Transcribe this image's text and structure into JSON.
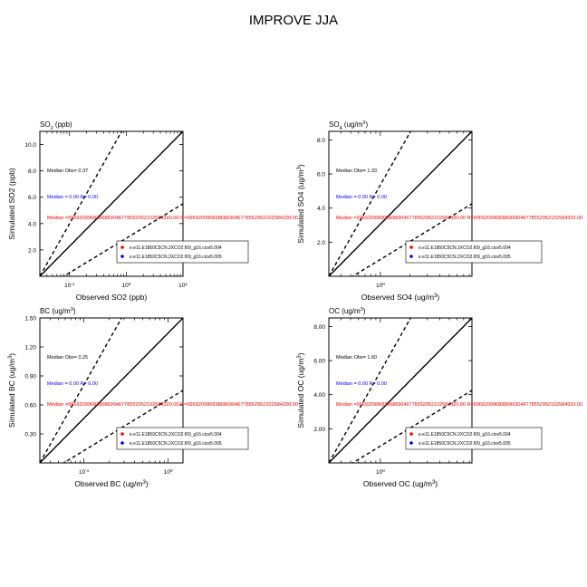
{
  "figure": {
    "title": "IMPROVE JJA"
  },
  "chart_data": [
    {
      "type": "scatter",
      "panel_title": "SO",
      "panel_title_sub": "2",
      "panel_title_suffix": " (ppb)",
      "xlabel": "Observed SO2 (ppb)",
      "ylabel": "Simulated SO2 (ppb)",
      "x_scale": "log",
      "xlim": [
        0.03,
        10
      ],
      "ylim": [
        0,
        11
      ],
      "x_ticks": [
        0.1,
        1,
        10
      ],
      "x_tick_labels": [
        "10",
        "10",
        "10"
      ],
      "x_tick_exps": [
        "-1",
        "0",
        "1"
      ],
      "y_ticks": [
        2,
        4,
        6,
        8,
        10
      ],
      "y_tick_labels": [
        "2.0",
        "4.0",
        "6.0",
        "8.0",
        "10.0"
      ],
      "median_obs": "Median Obs= 0.37",
      "median_blue": "Median = 0.00 R= 0.00",
      "median_red": "Median =99692099683868690467785529521025843​20.00 R=9969209968386869046778552952102584320.00",
      "legend": [
        {
          "label": "e.e11.E1850C5CN.2XCO2.f09_g16.cice5.004",
          "color": "#ff0000"
        },
        {
          "label": "e.e11.E1850C5CN.2XCO2.f09_g16.cice5.005",
          "color": "#0000ff"
        }
      ],
      "legend_position": "bottom-right",
      "grid": false
    },
    {
      "type": "scatter",
      "panel_title": "SO",
      "panel_title_sub": "4",
      "panel_title_suffix": " (ug/m",
      "panel_title_sup": "3",
      "panel_title_end": ")",
      "xlabel": "Observed SO4 (ug/m",
      "xlabel_sup": "3",
      "xlabel_end": ")",
      "ylabel": "Simulated SO4 (ug/m",
      "ylabel_sup": "3",
      "ylabel_end": ")",
      "x_scale": "log",
      "xlim": [
        0.3,
        8.5
      ],
      "ylim": [
        0,
        8.5
      ],
      "x_ticks": [
        1
      ],
      "x_tick_labels": [
        "10"
      ],
      "x_tick_exps": [
        "0"
      ],
      "y_ticks": [
        2,
        4,
        6,
        8
      ],
      "y_tick_labels": [
        "2.0",
        "4.0",
        "6.0",
        "8.0"
      ],
      "median_obs": "Median Obs= 1.33",
      "median_blue": "Median = 0.00 R= 0.00",
      "median_red": "Median =9969209968386869046778552952102584320.00 R=9969209968386869046778552952102584320.00",
      "legend": [
        {
          "label": "e.e11.E1850C5CN.2XCO2.f09_g16.cice5.004",
          "color": "#ff0000"
        },
        {
          "label": "e.e11.E1850C5CN.2XCO2.f09_g16.cice5.005",
          "color": "#0000ff"
        }
      ],
      "legend_position": "bottom-right",
      "grid": false
    },
    {
      "type": "scatter",
      "panel_title": "BC (ug/m",
      "panel_title_sup": "3",
      "panel_title_end": ")",
      "xlabel": "Observed BC (ug/m",
      "xlabel_sup": "3",
      "xlabel_end": ")",
      "ylabel": "Simulated BC (ug/m",
      "ylabel_sup": "3",
      "ylabel_end": ")",
      "x_scale": "log",
      "xlim": [
        0.03,
        1.5
      ],
      "ylim": [
        0,
        1.5
      ],
      "x_ticks": [
        0.1,
        1
      ],
      "x_tick_labels": [
        "10",
        "10"
      ],
      "x_tick_exps": [
        "-1",
        "0"
      ],
      "y_ticks": [
        0.3,
        0.6,
        0.9,
        1.2
      ],
      "y_tick_labels": [
        "0.30",
        "0.60",
        "0.90",
        "1.20"
      ],
      "y_top_label": "1.50",
      "median_obs": "Median Obs= 0.25",
      "median_blue": "Median = 0.00 R= 0.00",
      "median_red": "Median =9969209968386869046778552952102584320.00 R=9969209968386869046778552952102584320.00",
      "legend": [
        {
          "label": "e.e11.E1850C5CN.2XCO2.f09_g16.cice5.004",
          "color": "#ff0000"
        },
        {
          "label": "e.e11.E1850C5CN.2XCO2.f09_g16.cice5.005",
          "color": "#0000ff"
        }
      ],
      "legend_position": "bottom-right",
      "grid": false
    },
    {
      "type": "scatter",
      "panel_title": "OC (ug/m",
      "panel_title_sup": "3",
      "panel_title_end": ")",
      "xlabel": "Observed OC (ug/m",
      "xlabel_sup": "3",
      "xlabel_end": ")",
      "ylabel": "Simulated OC (ug/m",
      "ylabel_sup": "3",
      "ylabel_end": ")",
      "x_scale": "log",
      "xlim": [
        0.3,
        8.5
      ],
      "ylim": [
        0,
        8.5
      ],
      "x_ticks": [
        1
      ],
      "x_tick_labels": [
        "10"
      ],
      "x_tick_exps": [
        "0"
      ],
      "y_ticks": [
        2,
        4,
        6,
        8
      ],
      "y_tick_labels": [
        "2.00",
        "4.00",
        "6.00",
        "8.00"
      ],
      "median_obs": "Median Obs= 1.60",
      "median_blue": "Median = 0.00 R= 0.00",
      "median_red": "Median =9969209968386869046778552952102584320.00 R=9969209968386869046778552952102584320.00",
      "legend": [
        {
          "label": "e.e11.E1850C5CN.2XCO2.f09_g16.cice5.004",
          "color": "#ff0000"
        },
        {
          "label": "e.e11.E1850C5CN.2XCO2.f09_g16.cice5.005",
          "color": "#0000ff"
        }
      ],
      "legend_position": "bottom-right",
      "grid": false
    }
  ]
}
